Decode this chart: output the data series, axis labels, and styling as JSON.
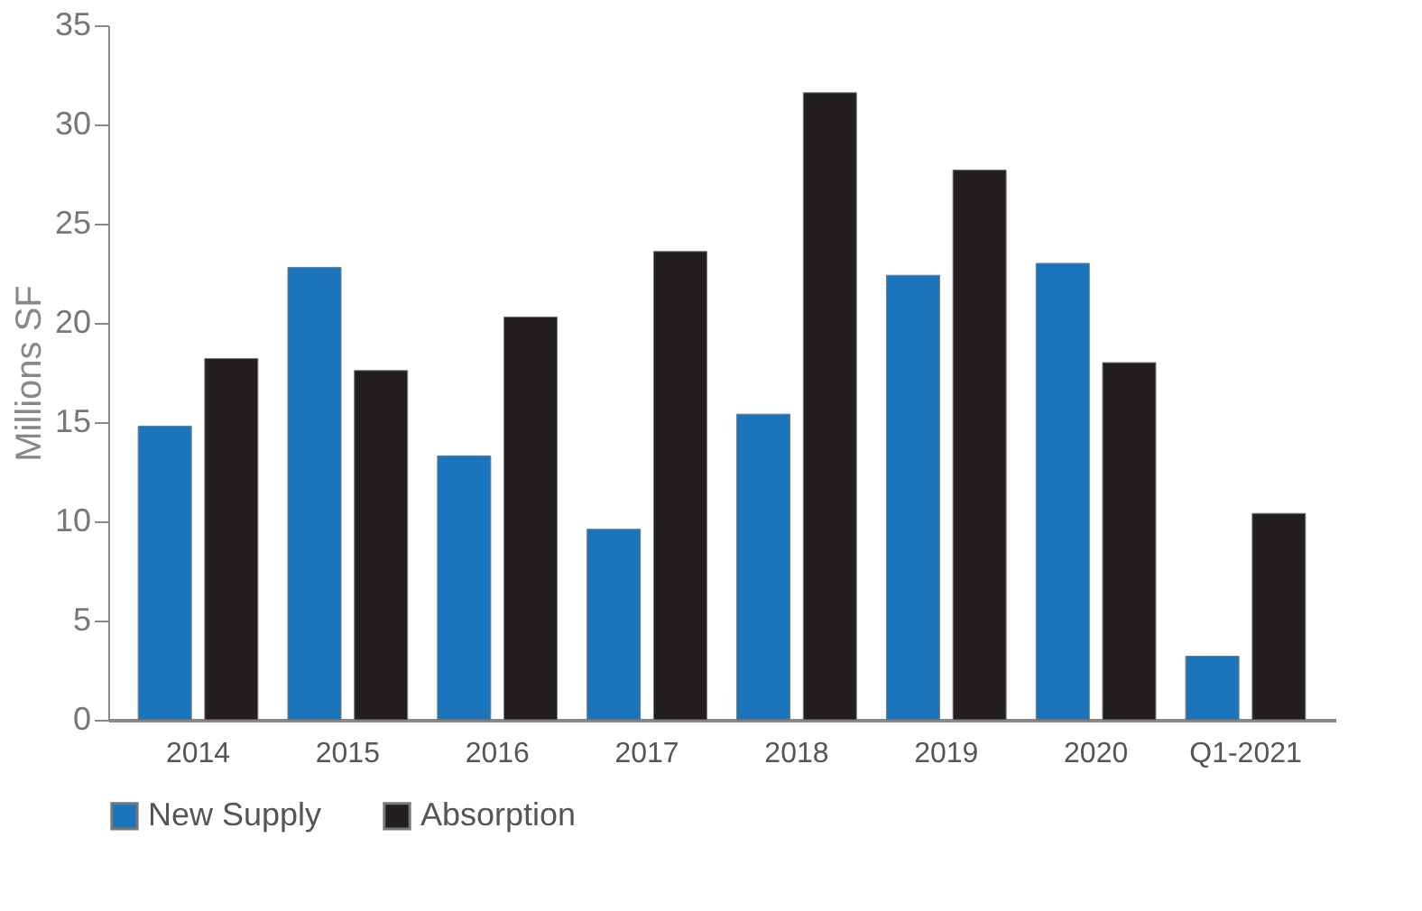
{
  "chart_data": {
    "type": "bar",
    "ylabel": "Millions SF",
    "categories": [
      "2014",
      "2015",
      "2016",
      "2017",
      "2018",
      "2019",
      "2020",
      "Q1-2021"
    ],
    "series": [
      {
        "name": "New Supply",
        "color": "#1b75bc",
        "values": [
          14.8,
          22.8,
          13.3,
          9.6,
          15.4,
          22.4,
          23.0,
          3.2
        ]
      },
      {
        "name": "Absorption",
        "color": "#231f20",
        "values": [
          18.2,
          17.6,
          20.3,
          23.6,
          31.6,
          27.7,
          18.0,
          10.4
        ]
      }
    ],
    "ylim": [
      0,
      35
    ],
    "yticks": [
      0,
      5,
      10,
      15,
      20,
      25,
      30,
      35
    ],
    "grid": false,
    "legend": "bottom"
  }
}
